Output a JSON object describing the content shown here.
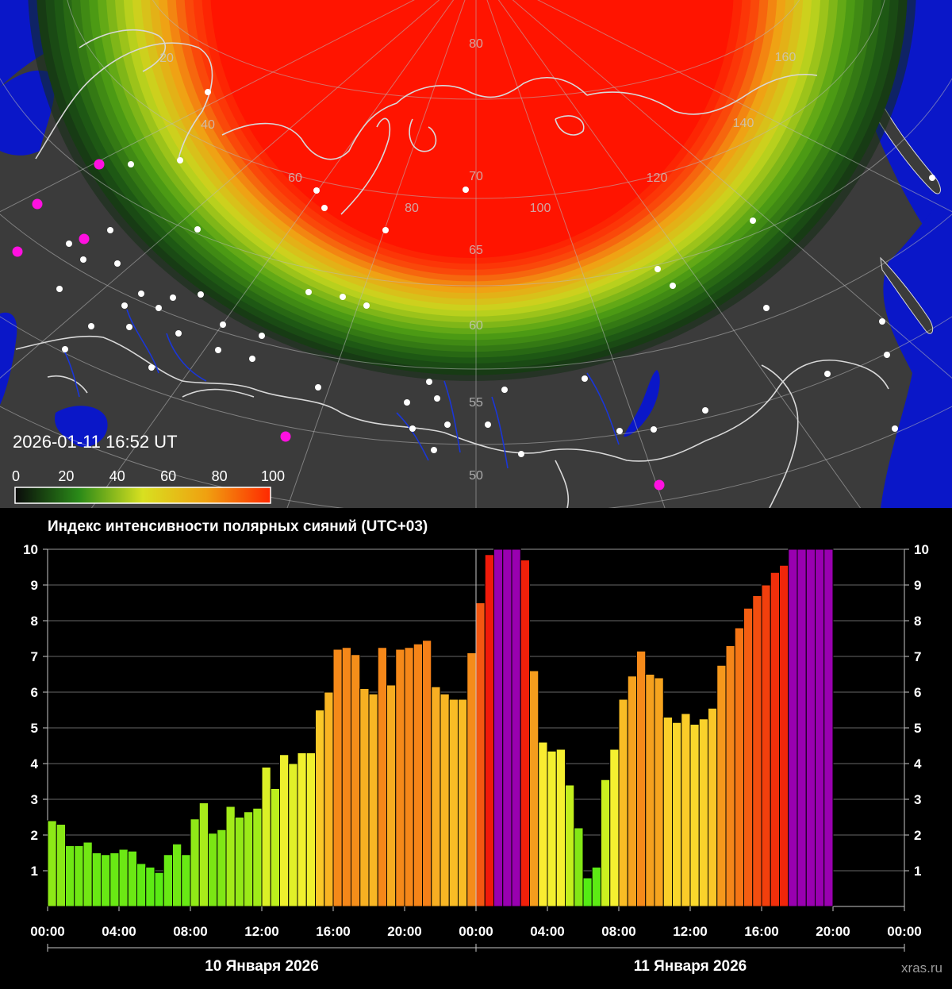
{
  "map": {
    "timestamp": "2026-01-11 16:52 UT",
    "colorbar": {
      "ticks": [
        "0",
        "20",
        "40",
        "60",
        "80",
        "100"
      ],
      "colors": [
        "#0a0a0a",
        "#2a8a18",
        "#d8e020",
        "#f0a010",
        "#ff2800"
      ]
    },
    "grid_labels": {
      "longitude": [
        "20",
        "40",
        "60",
        "80",
        "100",
        "120",
        "140",
        "160"
      ],
      "latitude": [
        "80",
        "70",
        "65",
        "60",
        "55",
        "50"
      ]
    },
    "colors": {
      "ocean": "#0a17c8",
      "land": "#3b3b3b",
      "coast": "#d8d8d8",
      "rivers": "#1a36d8",
      "city": "#ffffff",
      "highlight": "#ff10e0"
    }
  },
  "chart_data": {
    "type": "bar",
    "title": "Индекс интенсивности полярных сияний (UTC+03)",
    "ylim": [
      0,
      10
    ],
    "yticks": [
      "1",
      "2",
      "3",
      "4",
      "5",
      "6",
      "7",
      "8",
      "9",
      "10"
    ],
    "xlim": [
      0,
      48
    ],
    "xticks": [
      "00:00",
      "04:00",
      "08:00",
      "12:00",
      "16:00",
      "20:00",
      "00:00",
      "04:00",
      "08:00",
      "12:00",
      "16:00",
      "20:00",
      "00:00"
    ],
    "day_labels": [
      "10 Января 2026",
      "11 Января 2026"
    ],
    "bar_width_hours": 0.5,
    "values": [
      2.4,
      2.3,
      1.7,
      1.7,
      1.8,
      1.5,
      1.45,
      1.5,
      1.6,
      1.55,
      1.2,
      1.1,
      0.95,
      1.45,
      1.75,
      1.45,
      2.45,
      2.9,
      2.05,
      2.15,
      2.8,
      2.5,
      2.65,
      2.75,
      3.9,
      3.3,
      4.25,
      4.0,
      4.3,
      4.3,
      5.5,
      6.0,
      7.2,
      7.25,
      7.05,
      6.1,
      5.95,
      7.25,
      6.2,
      7.2,
      7.25,
      7.35,
      7.45,
      6.15,
      5.95,
      5.8,
      5.8,
      7.1,
      8.5,
      9.85,
      10,
      10,
      10,
      9.7,
      6.6,
      4.6,
      4.35,
      4.4,
      3.4,
      2.2,
      0.8,
      1.1,
      3.55,
      4.4,
      5.8,
      6.45,
      7.15,
      6.5,
      6.4,
      5.3,
      5.15,
      5.4,
      5.1,
      5.25,
      5.55,
      6.75,
      7.3,
      7.8,
      8.35,
      8.7,
      9.0,
      9.35,
      9.55,
      10,
      10,
      10,
      10,
      10
    ]
  },
  "watermark": "xras.ru"
}
